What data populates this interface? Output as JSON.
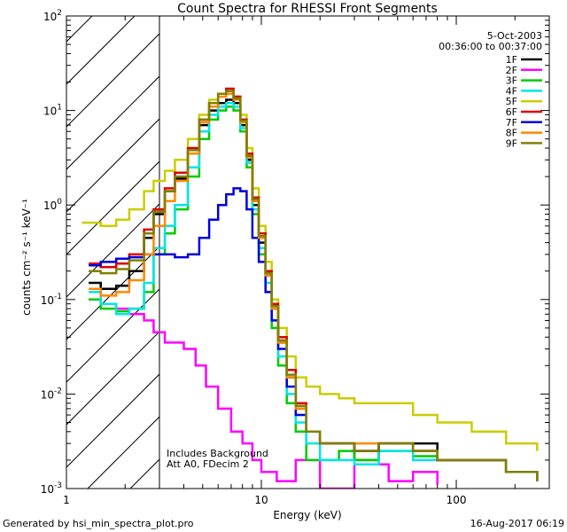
{
  "chart_data": {
    "type": "line",
    "title": "Count Spectra for RHESSI Front Segments",
    "xlabel": "Energy (keV)",
    "ylabel": "counts cm⁻² s⁻¹ keV⁻¹",
    "xscale": "log",
    "yscale": "log",
    "xlim": [
      1,
      300
    ],
    "ylim": [
      0.001,
      100
    ],
    "x_tick_labels": [
      "1",
      "10",
      "100"
    ],
    "y_tick_labels": [
      {
        "base": "10",
        "exp": "-3",
        "value": 0.001
      },
      {
        "base": "10",
        "exp": "-2",
        "value": 0.01
      },
      {
        "base": "10",
        "exp": "-1",
        "value": 0.1
      },
      {
        "base": "10",
        "exp": "0",
        "value": 1
      },
      {
        "base": "10",
        "exp": "1",
        "value": 10
      },
      {
        "base": "10",
        "exp": "2",
        "value": 100
      }
    ],
    "hatched_region_xlim": [
      1,
      3
    ],
    "date": "5-Oct-2003",
    "time_range": "00:36:00 to 00:37:00",
    "annotation_lines": [
      "Includes Background",
      "Att A0, FDecim 2"
    ],
    "series": [
      {
        "name": "1F",
        "color": "#000000",
        "points": [
          [
            1.3,
            0.15
          ],
          [
            1.5,
            0.13
          ],
          [
            1.8,
            0.14
          ],
          [
            2.1,
            0.2
          ],
          [
            2.5,
            0.45
          ],
          [
            2.8,
            0.8
          ],
          [
            3.2,
            1.4
          ],
          [
            3.6,
            1.9
          ],
          [
            4.2,
            3.5
          ],
          [
            4.8,
            7
          ],
          [
            5.4,
            10
          ],
          [
            6.0,
            12
          ],
          [
            6.6,
            13
          ],
          [
            7.2,
            12
          ],
          [
            7.8,
            7
          ],
          [
            8.4,
            3
          ],
          [
            9.0,
            1.0
          ],
          [
            9.7,
            0.4
          ],
          [
            10.5,
            0.18
          ],
          [
            11.3,
            0.08
          ],
          [
            12.2,
            0.035
          ],
          [
            13.5,
            0.015
          ],
          [
            15,
            0.007
          ],
          [
            17,
            0.004
          ],
          [
            20,
            0.003
          ],
          [
            25,
            0.003
          ],
          [
            30,
            0.002
          ],
          [
            40,
            0.003
          ],
          [
            60,
            0.003
          ],
          [
            80,
            0.002
          ],
          [
            120,
            0.002
          ],
          [
            180,
            0.0015
          ],
          [
            260,
            0.0012
          ]
        ]
      },
      {
        "name": "2F",
        "color": "#ff00ff",
        "points": [
          [
            1.3,
            0.1
          ],
          [
            1.5,
            0.09
          ],
          [
            1.8,
            0.08
          ],
          [
            2.1,
            0.07
          ],
          [
            2.5,
            0.06
          ],
          [
            2.8,
            0.045
          ],
          [
            3.2,
            0.035
          ],
          [
            3.6,
            0.035
          ],
          [
            4.0,
            0.03
          ],
          [
            4.6,
            0.02
          ],
          [
            5.2,
            0.012
          ],
          [
            6,
            0.007
          ],
          [
            7,
            0.004
          ],
          [
            8,
            0.003
          ],
          [
            9,
            0.002
          ],
          [
            10,
            0.0015
          ],
          [
            12,
            0.0012
          ],
          [
            15,
            0.002
          ],
          [
            20,
            0.001
          ],
          [
            30,
            0.0018
          ],
          [
            45,
            0.0012
          ],
          [
            60,
            0.0015
          ],
          [
            80,
            0.0011
          ]
        ]
      },
      {
        "name": "3F",
        "color": "#00cc00",
        "points": [
          [
            1.3,
            0.1
          ],
          [
            1.5,
            0.08
          ],
          [
            1.8,
            0.075
          ],
          [
            2.1,
            0.08
          ],
          [
            2.5,
            0.12
          ],
          [
            2.8,
            0.3
          ],
          [
            3.2,
            0.5
          ],
          [
            3.6,
            0.9
          ],
          [
            4.2,
            2
          ],
          [
            4.8,
            5
          ],
          [
            5.4,
            8
          ],
          [
            6.0,
            10
          ],
          [
            6.6,
            11
          ],
          [
            7.2,
            10
          ],
          [
            7.8,
            6
          ],
          [
            8.4,
            2.5
          ],
          [
            9.0,
            0.8
          ],
          [
            9.7,
            0.3
          ],
          [
            10.5,
            0.12
          ],
          [
            11.3,
            0.05
          ],
          [
            12.2,
            0.02
          ],
          [
            13.5,
            0.008
          ],
          [
            15,
            0.004
          ],
          [
            17,
            0.002
          ],
          [
            20,
            0.002
          ],
          [
            25,
            0.0025
          ],
          [
            30,
            0.002
          ],
          [
            40,
            0.0025
          ],
          [
            60,
            0.0022
          ],
          [
            80,
            0.002
          ],
          [
            120,
            0.002
          ],
          [
            180,
            0.0015
          ],
          [
            260,
            0.0012
          ]
        ]
      },
      {
        "name": "4F",
        "color": "#00e5e5",
        "points": [
          [
            1.3,
            0.12
          ],
          [
            1.5,
            0.09
          ],
          [
            1.8,
            0.07
          ],
          [
            2.1,
            0.08
          ],
          [
            2.5,
            0.15
          ],
          [
            2.8,
            0.35
          ],
          [
            3.2,
            0.6
          ],
          [
            3.6,
            1.0
          ],
          [
            4.2,
            2.5
          ],
          [
            4.8,
            6
          ],
          [
            5.4,
            9
          ],
          [
            6.0,
            11
          ],
          [
            6.6,
            12
          ],
          [
            7.2,
            11
          ],
          [
            7.8,
            6.5
          ],
          [
            8.4,
            2.8
          ],
          [
            9.0,
            0.9
          ],
          [
            9.7,
            0.35
          ],
          [
            10.5,
            0.15
          ],
          [
            11.3,
            0.06
          ],
          [
            12.2,
            0.025
          ],
          [
            13.5,
            0.01
          ],
          [
            15,
            0.005
          ],
          [
            17,
            0.003
          ],
          [
            20,
            0.002
          ],
          [
            25,
            0.002
          ],
          [
            30,
            0.0018
          ],
          [
            40,
            0.0025
          ],
          [
            60,
            0.002
          ],
          [
            80,
            0.002
          ],
          [
            120,
            0.002
          ],
          [
            180,
            0.0015
          ],
          [
            260,
            0.0012
          ]
        ]
      },
      {
        "name": "5F",
        "color": "#cccc00",
        "points": [
          [
            1.2,
            0.65
          ],
          [
            1.5,
            0.6
          ],
          [
            1.8,
            0.7
          ],
          [
            2.1,
            0.9
          ],
          [
            2.5,
            1.4
          ],
          [
            2.8,
            1.8
          ],
          [
            3.2,
            2.3
          ],
          [
            3.6,
            3.0
          ],
          [
            4.2,
            5
          ],
          [
            4.8,
            9
          ],
          [
            5.4,
            13
          ],
          [
            6.0,
            15
          ],
          [
            6.6,
            16
          ],
          [
            7.2,
            14
          ],
          [
            7.8,
            9
          ],
          [
            8.4,
            4
          ],
          [
            9.0,
            1.5
          ],
          [
            9.7,
            0.6
          ],
          [
            10.5,
            0.25
          ],
          [
            11.3,
            0.1
          ],
          [
            12.2,
            0.05
          ],
          [
            13.5,
            0.025
          ],
          [
            15,
            0.015
          ],
          [
            17,
            0.012
          ],
          [
            20,
            0.01
          ],
          [
            25,
            0.009
          ],
          [
            30,
            0.008
          ],
          [
            40,
            0.008
          ],
          [
            60,
            0.006
          ],
          [
            80,
            0.005
          ],
          [
            120,
            0.004
          ],
          [
            180,
            0.003
          ],
          [
            260,
            0.0025
          ]
        ]
      },
      {
        "name": "6F",
        "color": "#dd0000",
        "points": [
          [
            1.3,
            0.24
          ],
          [
            1.5,
            0.22
          ],
          [
            1.8,
            0.24
          ],
          [
            2.1,
            0.3
          ],
          [
            2.5,
            0.55
          ],
          [
            2.8,
            0.9
          ],
          [
            3.2,
            1.5
          ],
          [
            3.6,
            2.2
          ],
          [
            4.2,
            4
          ],
          [
            4.8,
            8
          ],
          [
            5.4,
            12
          ],
          [
            6.0,
            15
          ],
          [
            6.6,
            17
          ],
          [
            7.2,
            14
          ],
          [
            7.8,
            8
          ],
          [
            8.4,
            3.5
          ],
          [
            9.0,
            1.2
          ],
          [
            9.7,
            0.5
          ],
          [
            10.5,
            0.2
          ],
          [
            11.3,
            0.09
          ],
          [
            12.2,
            0.04
          ],
          [
            13.5,
            0.018
          ],
          [
            15,
            0.008
          ],
          [
            17,
            0.004
          ],
          [
            20,
            0.003
          ],
          [
            25,
            0.003
          ],
          [
            30,
            0.0025
          ],
          [
            40,
            0.003
          ],
          [
            60,
            0.0025
          ],
          [
            80,
            0.002
          ],
          [
            120,
            0.002
          ],
          [
            180,
            0.0015
          ],
          [
            260,
            0.0012
          ]
        ]
      },
      {
        "name": "7F",
        "color": "#0000dd",
        "points": [
          [
            1.3,
            0.23
          ],
          [
            1.5,
            0.25
          ],
          [
            1.8,
            0.27
          ],
          [
            2.1,
            0.28
          ],
          [
            2.5,
            0.3
          ],
          [
            2.8,
            0.3
          ],
          [
            3.2,
            0.3
          ],
          [
            3.6,
            0.28
          ],
          [
            4.2,
            0.3
          ],
          [
            4.8,
            0.45
          ],
          [
            5.4,
            0.7
          ],
          [
            6.0,
            1.0
          ],
          [
            6.6,
            1.3
          ],
          [
            7.2,
            1.5
          ],
          [
            7.8,
            1.4
          ],
          [
            8.4,
            0.9
          ],
          [
            9.0,
            0.45
          ],
          [
            9.7,
            0.25
          ],
          [
            10.5,
            0.12
          ],
          [
            11.3,
            0.06
          ],
          [
            12.2,
            0.03
          ],
          [
            13.5,
            0.012
          ],
          [
            15,
            0.006
          ],
          [
            17,
            0.004
          ],
          [
            20,
            0.003
          ],
          [
            25,
            0.003
          ],
          [
            30,
            0.0025
          ],
          [
            40,
            0.003
          ],
          [
            60,
            0.0025
          ],
          [
            80,
            0.002
          ],
          [
            120,
            0.002
          ],
          [
            180,
            0.0015
          ],
          [
            260,
            0.0012
          ]
        ]
      },
      {
        "name": "8F",
        "color": "#ff8800",
        "points": [
          [
            1.3,
            0.13
          ],
          [
            1.5,
            0.11
          ],
          [
            1.8,
            0.12
          ],
          [
            2.1,
            0.16
          ],
          [
            2.5,
            0.3
          ],
          [
            2.8,
            0.6
          ],
          [
            3.2,
            1.1
          ],
          [
            3.6,
            1.8
          ],
          [
            4.2,
            3.5
          ],
          [
            4.8,
            7.5
          ],
          [
            5.4,
            11
          ],
          [
            6.0,
            14
          ],
          [
            6.6,
            15
          ],
          [
            7.2,
            13
          ],
          [
            7.8,
            7.5
          ],
          [
            8.4,
            3.2
          ],
          [
            9.0,
            1.1
          ],
          [
            9.7,
            0.45
          ],
          [
            10.5,
            0.18
          ],
          [
            11.3,
            0.08
          ],
          [
            12.2,
            0.035
          ],
          [
            13.5,
            0.015
          ],
          [
            15,
            0.007
          ],
          [
            17,
            0.004
          ],
          [
            20,
            0.003
          ],
          [
            25,
            0.003
          ],
          [
            30,
            0.003
          ],
          [
            40,
            0.003
          ],
          [
            60,
            0.0025
          ],
          [
            80,
            0.002
          ],
          [
            120,
            0.002
          ],
          [
            180,
            0.0015
          ],
          [
            260,
            0.0012
          ]
        ]
      },
      {
        "name": "9F",
        "color": "#808000",
        "points": [
          [
            1.3,
            0.2
          ],
          [
            1.5,
            0.19
          ],
          [
            1.8,
            0.21
          ],
          [
            2.1,
            0.26
          ],
          [
            2.5,
            0.5
          ],
          [
            2.8,
            0.85
          ],
          [
            3.2,
            1.4
          ],
          [
            3.6,
            2.0
          ],
          [
            4.2,
            3.8
          ],
          [
            4.8,
            8
          ],
          [
            5.4,
            12
          ],
          [
            6.0,
            15
          ],
          [
            6.6,
            16
          ],
          [
            7.2,
            13.5
          ],
          [
            7.8,
            7.8
          ],
          [
            8.4,
            3.3
          ],
          [
            9.0,
            1.15
          ],
          [
            9.7,
            0.47
          ],
          [
            10.5,
            0.19
          ],
          [
            11.3,
            0.085
          ],
          [
            12.2,
            0.037
          ],
          [
            13.5,
            0.016
          ],
          [
            15,
            0.0075
          ],
          [
            17,
            0.004
          ],
          [
            20,
            0.003
          ],
          [
            25,
            0.003
          ],
          [
            30,
            0.0025
          ],
          [
            40,
            0.003
          ],
          [
            60,
            0.0025
          ],
          [
            80,
            0.002
          ],
          [
            120,
            0.002
          ],
          [
            180,
            0.0015
          ],
          [
            260,
            0.0012
          ]
        ]
      }
    ]
  },
  "footer": {
    "left": "Generated by hsi_min_spectra_plot.pro",
    "right": "16-Aug-2017 06:19"
  }
}
